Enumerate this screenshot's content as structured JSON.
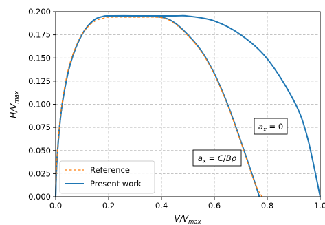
{
  "chart_data": {
    "type": "line",
    "xlabel": "V/V_max",
    "ylabel": "H/V_max",
    "xlim": [
      0.0,
      1.0
    ],
    "ylim": [
      0.0,
      0.2
    ],
    "xticks": [
      "0.0",
      "0.2",
      "0.4",
      "0.6",
      "0.8",
      "1.0"
    ],
    "yticks": [
      "0.000",
      "0.025",
      "0.050",
      "0.075",
      "0.100",
      "0.125",
      "0.150",
      "0.175",
      "0.200"
    ],
    "grid": true,
    "legend_position": "lower-left",
    "legend": [
      {
        "label": "Reference",
        "color": "#ff7f0e",
        "style": "dashed"
      },
      {
        "label": "Present work",
        "color": "#1f77b4",
        "style": "solid"
      }
    ],
    "annotations": [
      {
        "text": "a_x = 0",
        "x": 0.8,
        "y": 0.077
      },
      {
        "text": "a_x = C/Bρ",
        "x": 0.6,
        "y": 0.043
      }
    ],
    "series": [
      {
        "name": "Present work",
        "color": "#1f77b4",
        "style": "solid",
        "x": [
          0.0,
          0.005,
          0.02,
          0.04,
          0.06,
          0.09,
          0.12,
          0.15,
          0.18,
          0.2,
          0.3,
          0.45,
          0.5,
          0.6,
          0.7,
          0.8,
          0.9,
          0.95,
          1.0
        ],
        "y": [
          0.0,
          0.04,
          0.09,
          0.125,
          0.148,
          0.17,
          0.184,
          0.192,
          0.195,
          0.1955,
          0.1955,
          0.1955,
          0.1953,
          0.19,
          0.175,
          0.149,
          0.104,
          0.066,
          0.0
        ]
      },
      {
        "name": "Present work",
        "color": "#1f77b4",
        "style": "solid",
        "x": [
          0.0,
          0.005,
          0.02,
          0.04,
          0.06,
          0.09,
          0.12,
          0.15,
          0.18,
          0.2,
          0.3,
          0.4,
          0.45,
          0.5,
          0.55,
          0.6,
          0.65,
          0.7,
          0.75,
          0.77
        ],
        "y": [
          0.0,
          0.04,
          0.09,
          0.125,
          0.148,
          0.17,
          0.184,
          0.192,
          0.195,
          0.1955,
          0.1955,
          0.194,
          0.188,
          0.175,
          0.158,
          0.133,
          0.1,
          0.06,
          0.018,
          0.0
        ]
      },
      {
        "name": "Reference",
        "color": "#ff7f0e",
        "style": "dashed",
        "x": [
          0.0,
          0.005,
          0.02,
          0.04,
          0.06,
          0.09,
          0.12,
          0.15,
          0.18,
          0.2,
          0.3,
          0.4,
          0.45,
          0.5,
          0.55,
          0.6,
          0.65,
          0.7,
          0.75,
          0.78
        ],
        "y": [
          0.0,
          0.042,
          0.092,
          0.128,
          0.15,
          0.171,
          0.183,
          0.19,
          0.193,
          0.194,
          0.194,
          0.1935,
          0.187,
          0.174,
          0.157,
          0.132,
          0.099,
          0.059,
          0.017,
          0.0
        ]
      }
    ]
  }
}
